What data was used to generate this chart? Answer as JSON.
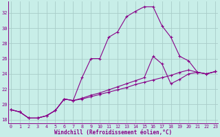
{
  "xlabel": "Windchill (Refroidissement éolien,°C)",
  "bg_color": "#c8eee8",
  "grid_color": "#a8ccc8",
  "line_color": "#880088",
  "xlim": [
    -0.3,
    23.3
  ],
  "ylim": [
    17.5,
    33.5
  ],
  "xticks": [
    0,
    1,
    2,
    3,
    4,
    5,
    6,
    7,
    8,
    9,
    10,
    11,
    12,
    13,
    14,
    15,
    16,
    17,
    18,
    19,
    20,
    21,
    22,
    23
  ],
  "yticks": [
    18,
    20,
    22,
    24,
    26,
    28,
    30,
    32
  ],
  "series1_x": [
    0,
    1,
    2,
    3,
    4,
    5,
    6,
    7,
    8,
    9,
    10,
    11,
    12,
    13,
    14,
    15,
    16,
    17,
    18,
    19,
    20,
    21,
    22,
    23
  ],
  "series1_y": [
    19.3,
    19.0,
    18.2,
    18.2,
    18.5,
    19.2,
    20.7,
    20.5,
    23.5,
    26.0,
    26.0,
    28.8,
    29.5,
    31.5,
    32.2,
    32.8,
    32.8,
    30.3,
    28.8,
    26.3,
    25.7,
    24.2,
    24.0,
    24.3
  ],
  "series2_x": [
    0,
    1,
    2,
    3,
    4,
    5,
    6,
    7,
    8,
    9,
    10,
    11,
    12,
    13,
    14,
    15,
    16,
    17,
    18,
    19,
    20,
    21,
    22,
    23
  ],
  "series2_y": [
    19.3,
    19.0,
    18.2,
    18.2,
    18.5,
    19.2,
    20.7,
    20.5,
    20.8,
    21.2,
    21.5,
    21.9,
    22.3,
    22.7,
    23.1,
    23.5,
    26.3,
    25.3,
    22.7,
    23.3,
    24.0,
    24.2,
    24.0,
    24.3
  ],
  "series3_x": [
    0,
    1,
    2,
    3,
    4,
    5,
    6,
    7,
    8,
    9,
    10,
    11,
    12,
    13,
    14,
    15,
    16,
    17,
    18,
    19,
    20,
    21,
    22,
    23
  ],
  "series3_y": [
    19.3,
    19.0,
    18.2,
    18.2,
    18.5,
    19.2,
    20.7,
    20.5,
    20.7,
    21.0,
    21.3,
    21.6,
    21.9,
    22.2,
    22.6,
    22.9,
    23.2,
    23.5,
    23.8,
    24.2,
    24.5,
    24.2,
    24.0,
    24.3
  ]
}
